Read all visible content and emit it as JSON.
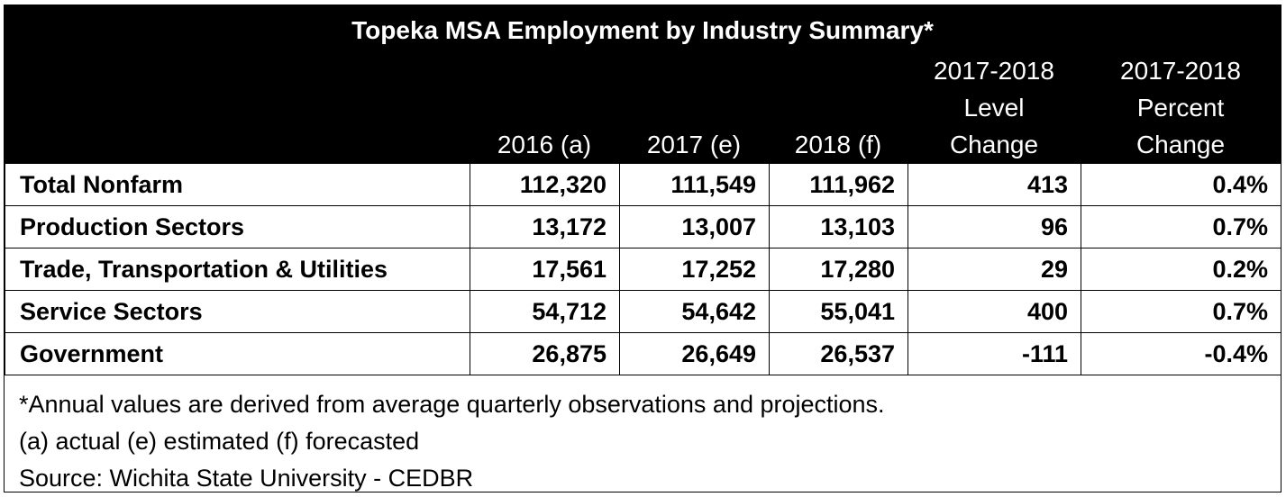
{
  "title": "Topeka MSA Employment by Industry Summary*",
  "columns": {
    "y2016": [
      "2016 (a)"
    ],
    "y2017": [
      "2017 (e)"
    ],
    "y2018": [
      "2018 (f)"
    ],
    "level": [
      "2017-2018",
      "Level",
      "Change"
    ],
    "percent": [
      "2017-2018",
      "Percent",
      "Change"
    ]
  },
  "rows": [
    {
      "label": "Total Nonfarm",
      "v2016": "112,320",
      "v2017": "111,549",
      "v2018": "111,962",
      "level": "413",
      "percent": "0.4%"
    },
    {
      "label": "Production Sectors",
      "v2016": "13,172",
      "v2017": "13,007",
      "v2018": "13,103",
      "level": "96",
      "percent": "0.7%"
    },
    {
      "label": "Trade, Transportation & Utilities",
      "v2016": "17,561",
      "v2017": "17,252",
      "v2018": "17,280",
      "level": "29",
      "percent": "0.2%"
    },
    {
      "label": "Service Sectors",
      "v2016": "54,712",
      "v2017": "54,642",
      "v2018": "55,041",
      "level": "400",
      "percent": "0.7%"
    },
    {
      "label": "Government",
      "v2016": "26,875",
      "v2017": "26,649",
      "v2018": "26,537",
      "level": "-111",
      "percent": "-0.4%"
    }
  ],
  "notes": {
    "line1": "*Annual values are derived from average quarterly observations and projections.",
    "line2": "(a) actual (e) estimated  (f) forecasted",
    "line3": "Source: Wichita State University - CEDBR"
  },
  "colors": {
    "header_bg": "#000000",
    "header_text": "#ffffff",
    "grid": "#000000"
  }
}
